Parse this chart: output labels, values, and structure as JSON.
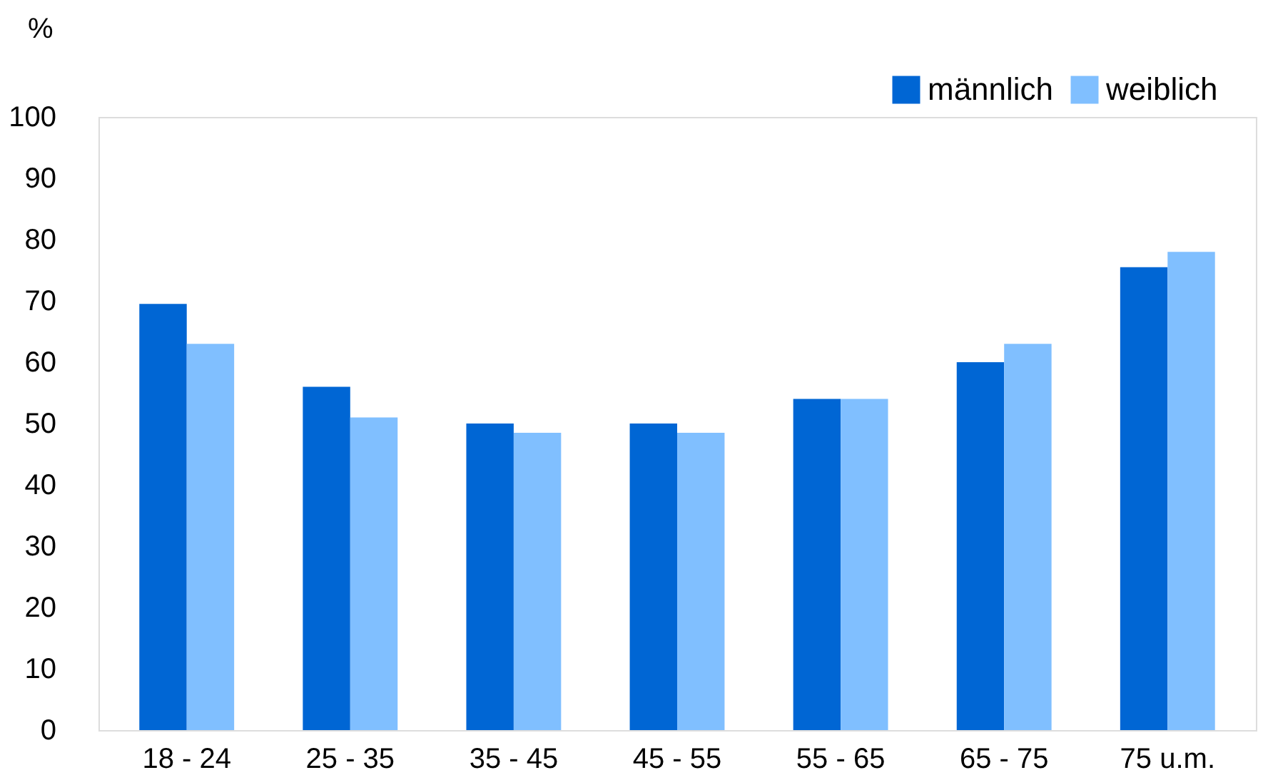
{
  "chart_data": {
    "type": "bar",
    "ylabel": "%",
    "categories": [
      "18 - 24",
      "25 - 35",
      "35 - 45",
      "45 - 55",
      "55 - 65",
      "65 - 75",
      "75 u.m."
    ],
    "series": [
      {
        "name": "männlich",
        "color": "#0066d4",
        "values": [
          69.5,
          56,
          50,
          50,
          54,
          60,
          75.5
        ]
      },
      {
        "name": "weiblich",
        "color": "#80bfff",
        "values": [
          63,
          51,
          48.5,
          48.5,
          54,
          63,
          78
        ]
      }
    ],
    "ylim": [
      0,
      100
    ],
    "yticks": [
      0,
      10,
      20,
      30,
      40,
      50,
      60,
      70,
      80,
      90,
      100
    ],
    "grid": false,
    "legend": "top right"
  }
}
